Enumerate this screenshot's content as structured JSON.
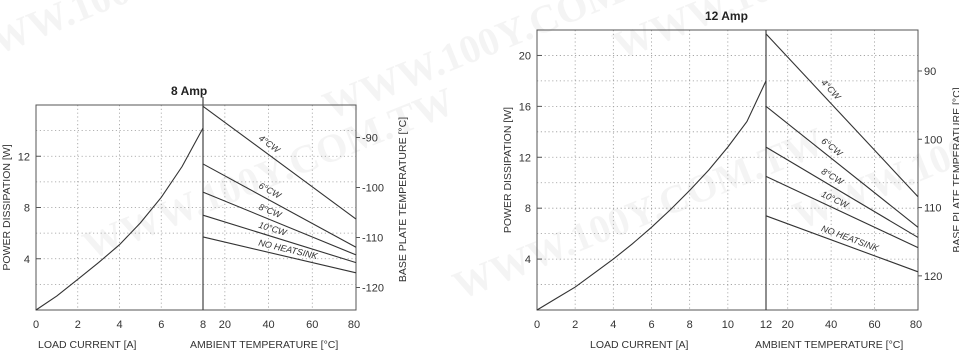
{
  "watermark": "WWW.100Y.COM.TW",
  "chart_data": [
    {
      "type": "line",
      "title": "8 Amp",
      "left_axis": {
        "label": "POWER DISSIPATION [W]",
        "ticks": [
          4,
          8,
          12
        ],
        "range": [
          0,
          16
        ],
        "grid_step": 2
      },
      "right_axis": {
        "label": "BASE PLATE TEMPERATURE [°C]",
        "ticks": [
          90,
          100,
          110,
          120
        ],
        "range": [
          83.5,
          124.5
        ]
      },
      "x_left": {
        "label": "LOAD CURRENT [A]",
        "ticks": [
          0,
          2,
          4,
          6,
          8
        ],
        "range": [
          0,
          8
        ]
      },
      "x_right": {
        "label": "AMBIENT TEMPERATURE [°C]",
        "ticks": [
          8,
          20,
          40,
          60,
          80
        ],
        "ambient_ticks": [
          20,
          40,
          60,
          80
        ],
        "range": [
          10,
          80
        ]
      },
      "grid": true,
      "power_curve": {
        "x": [
          0,
          1,
          2,
          3,
          4,
          5,
          6,
          7,
          8
        ],
        "y": [
          0,
          1.1,
          2.4,
          3.7,
          5.1,
          6.8,
          8.8,
          11.2,
          14.2
        ]
      },
      "series": [
        {
          "name": "4°CW",
          "values": [
            15.9,
            7.1
          ]
        },
        {
          "name": "6°CW",
          "values": [
            11.4,
            4.9
          ]
        },
        {
          "name": "8°CW",
          "values": [
            9.2,
            4.3
          ]
        },
        {
          "name": "10°CW",
          "values": [
            7.4,
            3.7
          ]
        },
        {
          "name": "NO HEATSINK",
          "values": [
            5.7,
            2.9
          ]
        }
      ]
    },
    {
      "type": "line",
      "title": "12 Amp",
      "left_axis": {
        "label": "POWER DISSIPATION [W]",
        "ticks": [
          4,
          8,
          12,
          16,
          20
        ],
        "range": [
          0,
          22
        ],
        "grid_step": 2
      },
      "right_axis": {
        "label": "BASE PLATE TEMPERATURE [°C]",
        "ticks": [
          90,
          100,
          110,
          120
        ],
        "range": [
          84,
          125
        ]
      },
      "x_left": {
        "label": "LOAD CURRENT [A]",
        "ticks": [
          0,
          2,
          4,
          6,
          8,
          10,
          12
        ],
        "range": [
          0,
          12
        ]
      },
      "x_right": {
        "label": "AMBIENT TEMPERATURE [°C]",
        "ticks": [
          12,
          20,
          40,
          60,
          80
        ],
        "ambient_ticks": [
          20,
          40,
          60,
          80
        ],
        "range": [
          10,
          80
        ]
      },
      "grid": true,
      "power_curve": {
        "x": [
          0,
          1,
          2,
          3,
          4,
          5,
          6,
          7,
          8,
          9,
          10,
          11,
          12
        ],
        "y": [
          0,
          0.9,
          1.8,
          2.9,
          4.0,
          5.2,
          6.5,
          7.9,
          9.4,
          11.0,
          12.8,
          14.8,
          18.0
        ]
      },
      "series": [
        {
          "name": "4°CW",
          "values": [
            21.7,
            8.9
          ]
        },
        {
          "name": "6°CW",
          "values": [
            16.0,
            6.5
          ]
        },
        {
          "name": "8°CW",
          "values": [
            12.8,
            5.7
          ]
        },
        {
          "name": "10°CW",
          "values": [
            10.5,
            4.9
          ]
        },
        {
          "name": "NO HEATSINK",
          "values": [
            7.4,
            3.0
          ]
        }
      ]
    }
  ]
}
